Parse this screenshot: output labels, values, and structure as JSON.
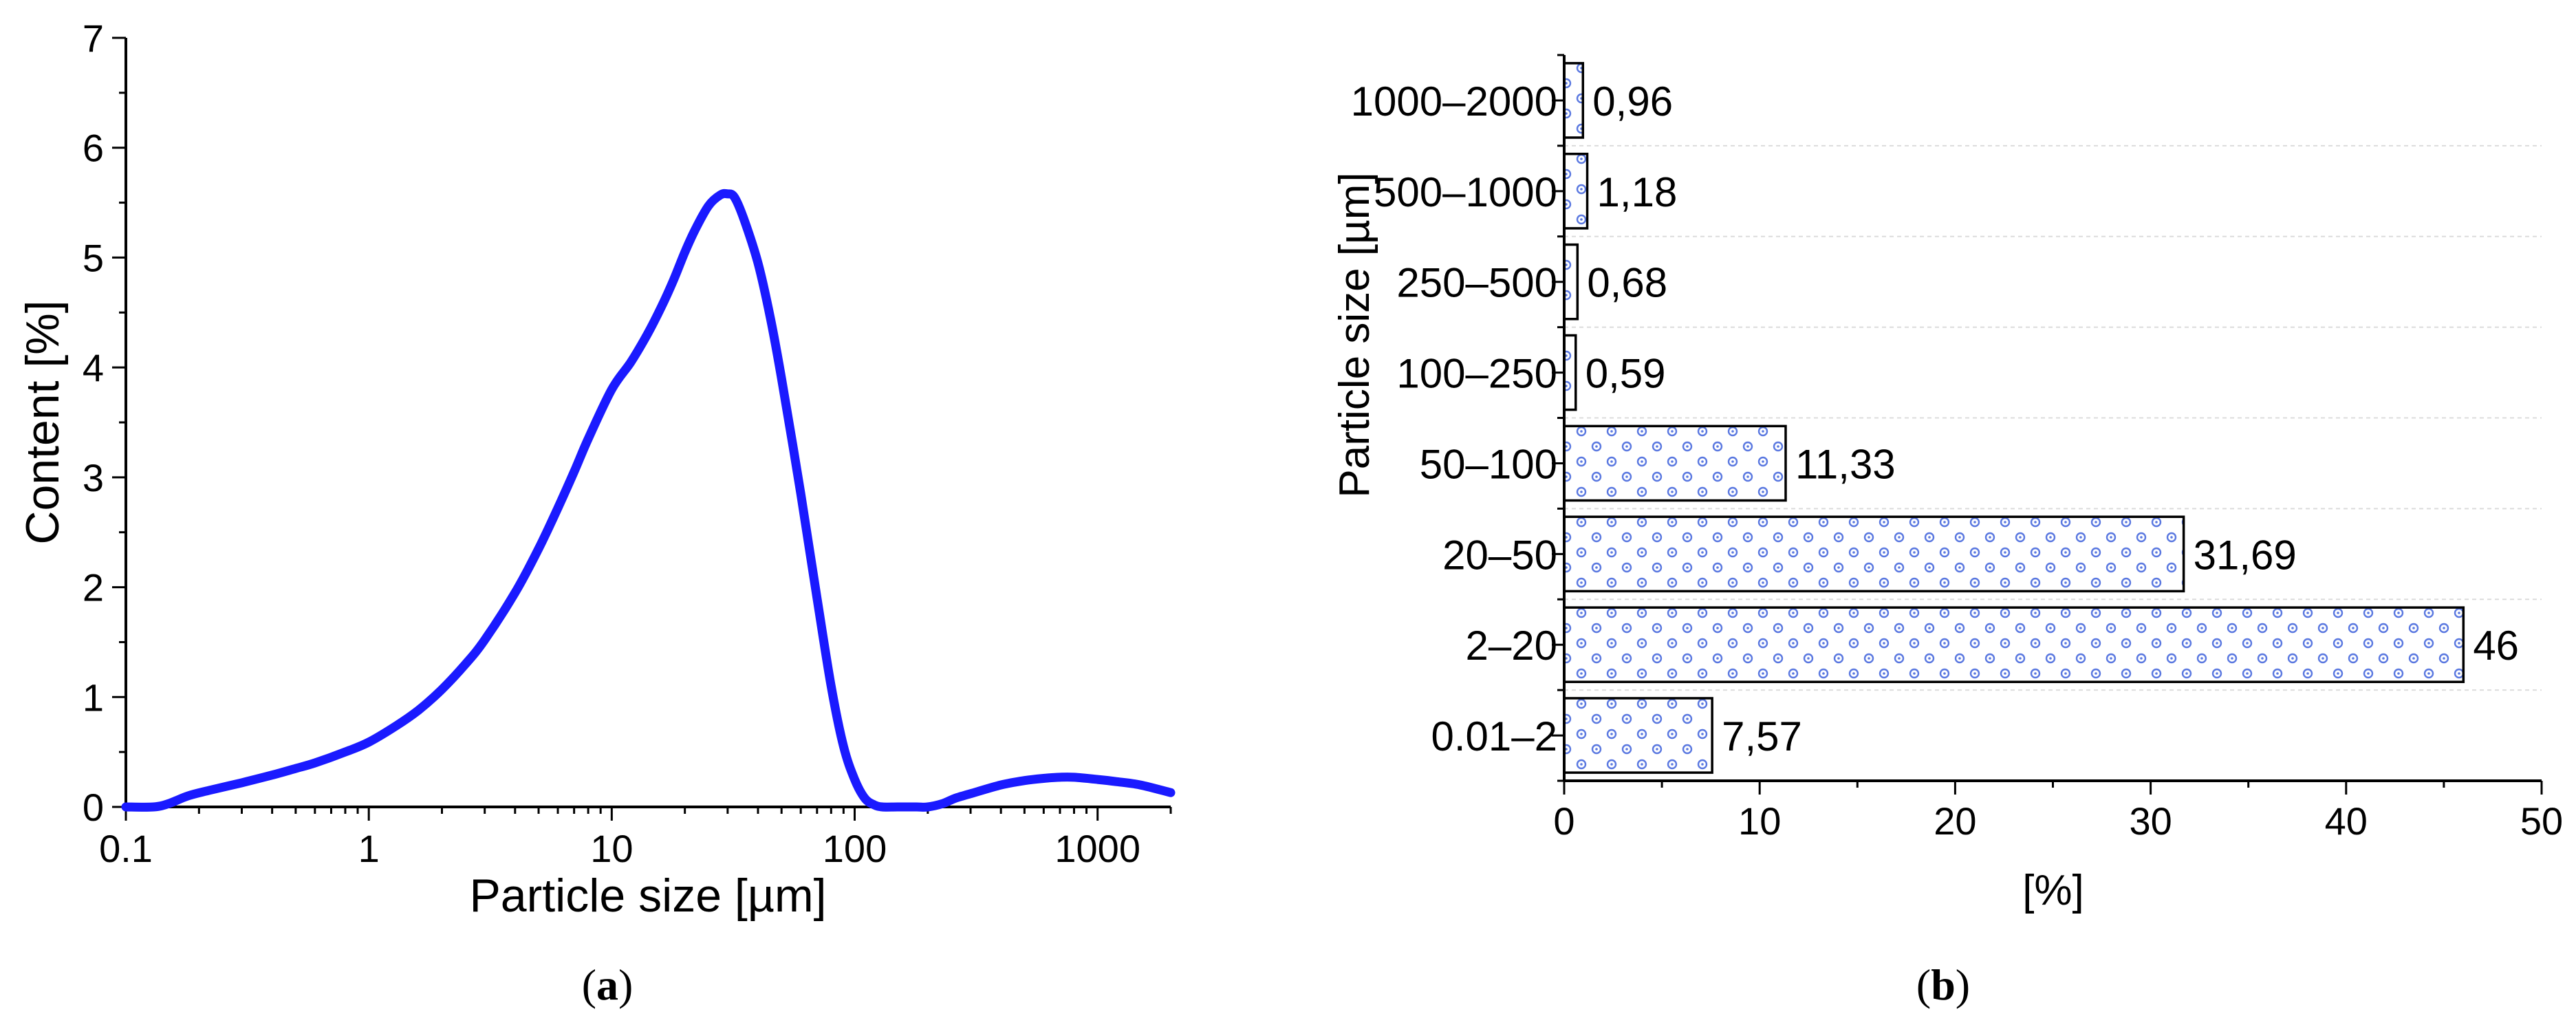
{
  "chart_data": [
    {
      "type": "line",
      "panel": "(a)",
      "title": "",
      "xlabel": "Particle size [µm]",
      "ylabel": "Content [%]",
      "xscale": "log",
      "xlim": [
        0.1,
        2000
      ],
      "ylim": [
        0,
        7
      ],
      "xticks": [
        "0.1",
        "1",
        "10",
        "100",
        "1000"
      ],
      "yticks": [
        "0",
        "1",
        "2",
        "3",
        "4",
        "5",
        "6",
        "7"
      ],
      "color": "#1a1aff",
      "series": [
        {
          "name": "Content",
          "x": [
            0.1,
            0.13,
            0.15,
            0.18,
            0.22,
            0.3,
            0.4,
            0.5,
            0.6,
            0.8,
            1.0,
            1.3,
            1.6,
            2.0,
            2.5,
            3.0,
            4.0,
            5.0,
            6.0,
            7.0,
            8.0,
            10,
            12,
            14,
            16,
            18,
            20,
            22,
            25,
            28,
            30,
            32,
            35,
            40,
            45,
            50,
            60,
            70,
            80,
            90,
            100,
            110,
            120,
            130,
            150,
            180,
            200,
            230,
            260,
            300,
            400,
            500,
            600,
            700,
            800,
            1000,
            1200,
            1500,
            2000
          ],
          "y": [
            0,
            0,
            0.03,
            0.1,
            0.15,
            0.22,
            0.29,
            0.35,
            0.4,
            0.5,
            0.59,
            0.74,
            0.88,
            1.07,
            1.3,
            1.52,
            1.95,
            2.35,
            2.72,
            3.05,
            3.35,
            3.8,
            4.05,
            4.3,
            4.55,
            4.8,
            5.05,
            5.25,
            5.47,
            5.57,
            5.58,
            5.55,
            5.35,
            4.95,
            4.45,
            3.9,
            2.85,
            1.9,
            1.1,
            0.55,
            0.25,
            0.08,
            0.02,
            0,
            0,
            0,
            0,
            0.03,
            0.08,
            0.12,
            0.2,
            0.24,
            0.26,
            0.27,
            0.27,
            0.25,
            0.23,
            0.2,
            0.13
          ]
        }
      ]
    },
    {
      "type": "bar",
      "orientation": "horizontal",
      "panel": "(b)",
      "title": "",
      "xlabel": "[%]",
      "ylabel": "Particle size [µm]",
      "xlim": [
        0,
        50
      ],
      "xticks": [
        "0",
        "10",
        "20",
        "30",
        "40",
        "50"
      ],
      "categories": [
        "0.01–2",
        "2–20",
        "20–50",
        "50–100",
        "100–250",
        "250–500",
        "500–1000",
        "1000–2000"
      ],
      "values": [
        7.57,
        46,
        31.69,
        11.33,
        0.59,
        0.68,
        1.18,
        0.96
      ],
      "value_labels": [
        "7,57",
        "46",
        "31,69",
        "11,33",
        "0,59",
        "0,68",
        "1,18",
        "0,96"
      ],
      "pattern_color": "#4f6fd9"
    }
  ],
  "labels": {
    "panel_a": "a",
    "panel_b": "b"
  }
}
